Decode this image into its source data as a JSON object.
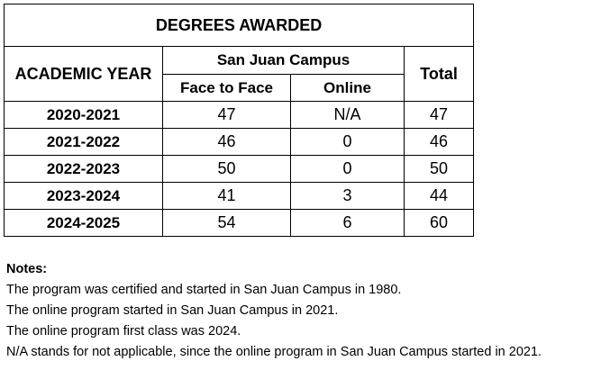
{
  "table": {
    "title": "DEGREES AWARDED",
    "year_header": "ACADEMIC YEAR",
    "campus_header": "San Juan Campus",
    "face_header": "Face to Face",
    "online_header": "Online",
    "total_header": "Total",
    "rows": [
      {
        "year": "2020-2021",
        "face": "47",
        "online": "N/A",
        "total": "47"
      },
      {
        "year": "2021-2022",
        "face": "46",
        "online": "0",
        "total": "46"
      },
      {
        "year": "2022-2023",
        "face": "50",
        "online": "0",
        "total": "50"
      },
      {
        "year": "2023-2024",
        "face": "41",
        "online": "3",
        "total": "44"
      },
      {
        "year": "2024-2025",
        "face": "54",
        "online": "6",
        "total": "60"
      }
    ]
  },
  "notes": {
    "heading": "Notes:",
    "lines": [
      "The program was certified and started in San Juan Campus in 1980.",
      "The online program started in San Juan Campus in 2021.",
      "The online program first class was 2024.",
      "N/A stands for not applicable, since the online program in San Juan Campus started in 2021."
    ]
  }
}
